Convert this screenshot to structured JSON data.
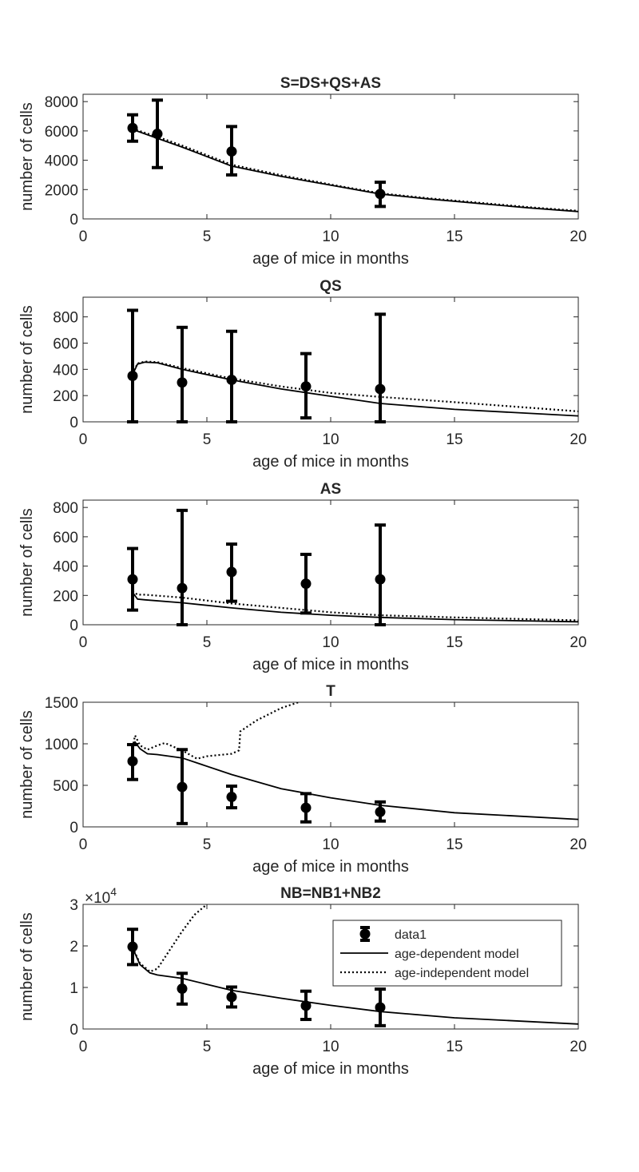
{
  "figure": {
    "xlabel": "age of mice in months",
    "ylabel": "number of cells"
  },
  "legend": {
    "entries": [
      "data1",
      "age-dependent model",
      "age-independent model"
    ]
  },
  "colors": {
    "ink": "#000000",
    "axis": "#262626",
    "background": "#ffffff"
  },
  "chart_data": [
    {
      "type": "line",
      "title": "S=DS+QS+AS",
      "xlabel": "age of mice in months",
      "ylabel": "number of cells",
      "xlim": [
        0,
        20
      ],
      "ylim": [
        0,
        8500
      ],
      "xticks": [
        0,
        5,
        10,
        15,
        20
      ],
      "yticks": [
        0,
        2000,
        4000,
        6000,
        8000
      ],
      "grid": false,
      "data": {
        "x": [
          2,
          3,
          6,
          12
        ],
        "y": [
          6200,
          5800,
          4600,
          1700
        ],
        "err_low": [
          5300,
          3500,
          3000,
          850
        ],
        "err_high": [
          7100,
          8100,
          6300,
          2500
        ]
      },
      "series": [
        {
          "name": "age-dependent model",
          "style": "solid",
          "x": [
            2,
            3,
            4,
            6,
            8,
            10,
            12,
            14,
            16,
            18,
            20
          ],
          "y": [
            6100,
            5500,
            4900,
            3600,
            2900,
            2300,
            1700,
            1350,
            1050,
            750,
            500
          ]
        },
        {
          "name": "age-independent model",
          "style": "dotted",
          "x": [
            2,
            3,
            4,
            6,
            8,
            10,
            12,
            14,
            16,
            18,
            20
          ],
          "y": [
            6150,
            5600,
            5000,
            3700,
            2980,
            2350,
            1750,
            1400,
            1100,
            800,
            550
          ]
        }
      ]
    },
    {
      "type": "line",
      "title": "QS",
      "xlabel": "age of mice in months",
      "ylabel": "number of cells",
      "xlim": [
        0,
        20
      ],
      "ylim": [
        0,
        950
      ],
      "xticks": [
        0,
        5,
        10,
        15,
        20
      ],
      "yticks": [
        0,
        200,
        400,
        600,
        800
      ],
      "grid": false,
      "data": {
        "x": [
          2,
          4,
          6,
          9,
          12
        ],
        "y": [
          350,
          300,
          320,
          270,
          250
        ],
        "err_low": [
          0,
          0,
          0,
          30,
          0
        ],
        "err_high": [
          850,
          720,
          690,
          520,
          820
        ]
      },
      "series": [
        {
          "name": "age-dependent model",
          "style": "solid",
          "x": [
            2,
            2.2,
            2.5,
            3,
            4,
            6,
            8,
            10,
            12,
            15,
            20
          ],
          "y": [
            360,
            440,
            455,
            450,
            400,
            320,
            250,
            195,
            140,
            95,
            45
          ]
        },
        {
          "name": "age-independent model",
          "style": "dotted",
          "x": [
            2,
            2.2,
            2.5,
            3,
            4,
            6,
            8,
            10,
            12,
            15,
            20
          ],
          "y": [
            365,
            445,
            460,
            455,
            410,
            330,
            270,
            220,
            190,
            150,
            80
          ]
        }
      ]
    },
    {
      "type": "line",
      "title": "AS",
      "xlabel": "age of mice in months",
      "ylabel": "number of cells",
      "xlim": [
        0,
        20
      ],
      "ylim": [
        0,
        850
      ],
      "xticks": [
        0,
        5,
        10,
        15,
        20
      ],
      "yticks": [
        0,
        200,
        400,
        600,
        800
      ],
      "grid": false,
      "data": {
        "x": [
          2,
          4,
          6,
          9,
          12
        ],
        "y": [
          310,
          250,
          360,
          280,
          310
        ],
        "err_low": [
          100,
          0,
          160,
          80,
          0
        ],
        "err_high": [
          520,
          780,
          550,
          480,
          680
        ]
      },
      "series": [
        {
          "name": "age-dependent model",
          "style": "solid",
          "x": [
            2,
            2.2,
            2.5,
            4,
            6,
            8,
            10,
            12,
            15,
            20
          ],
          "y": [
            220,
            175,
            170,
            150,
            115,
            85,
            65,
            50,
            35,
            20
          ]
        },
        {
          "name": "age-independent model",
          "style": "dotted",
          "x": [
            2,
            2.2,
            2.5,
            4,
            6,
            8,
            10,
            12,
            15,
            20
          ],
          "y": [
            230,
            205,
            205,
            185,
            145,
            115,
            85,
            65,
            50,
            30
          ]
        }
      ]
    },
    {
      "type": "line",
      "title": "T",
      "xlabel": "age of mice in months",
      "ylabel": "number of cells",
      "xlim": [
        0,
        20
      ],
      "ylim": [
        0,
        1500
      ],
      "xticks": [
        0,
        5,
        10,
        15,
        20
      ],
      "yticks": [
        0,
        500,
        1000,
        1500
      ],
      "grid": false,
      "data": {
        "x": [
          2,
          4,
          6,
          9,
          12
        ],
        "y": [
          790,
          480,
          360,
          230,
          180
        ],
        "err_low": [
          570,
          40,
          230,
          60,
          70
        ],
        "err_high": [
          990,
          930,
          490,
          400,
          300
        ]
      },
      "series": [
        {
          "name": "age-dependent model",
          "style": "solid",
          "x": [
            2,
            2.1,
            2.3,
            2.6,
            3,
            4,
            6,
            8,
            10,
            12,
            15,
            20
          ],
          "y": [
            950,
            1020,
            940,
            880,
            870,
            830,
            630,
            460,
            350,
            260,
            170,
            90
          ]
        },
        {
          "name": "age-independent model",
          "style": "dotted",
          "x": [
            2,
            2.1,
            2.3,
            2.6,
            3,
            3.3,
            4,
            4.6,
            5,
            6,
            6.3,
            6.35,
            7,
            8,
            8.7
          ],
          "y": [
            960,
            1100,
            980,
            930,
            980,
            1010,
            920,
            820,
            850,
            880,
            920,
            1150,
            1280,
            1430,
            1500
          ]
        }
      ]
    },
    {
      "type": "line",
      "title": "NB=NB1+NB2",
      "xlabel": "age of mice in months",
      "ylabel": "number of cells",
      "xlim": [
        0,
        20
      ],
      "ylim": [
        0,
        30000
      ],
      "xticks": [
        0,
        5,
        10,
        15,
        20
      ],
      "yticks": [
        0,
        10000,
        20000,
        30000
      ],
      "ytick_labels": [
        "0",
        "1",
        "2",
        "3"
      ],
      "y_exponent": "4",
      "grid": false,
      "legend_position": "top-right",
      "data": {
        "x": [
          2,
          4,
          6,
          9,
          12
        ],
        "y": [
          19800,
          9700,
          7700,
          5600,
          5200
        ],
        "err_low": [
          15500,
          6000,
          5300,
          2300,
          800
        ],
        "err_high": [
          24000,
          13400,
          10100,
          9100,
          9600
        ]
      },
      "series": [
        {
          "name": "age-dependent model",
          "style": "solid",
          "x": [
            2,
            2.3,
            2.7,
            3,
            4,
            6,
            8,
            10,
            12,
            15,
            20
          ],
          "y": [
            19500,
            15500,
            13500,
            13000,
            12200,
            9300,
            7400,
            5700,
            4200,
            2700,
            1200
          ]
        },
        {
          "name": "age-independent model",
          "style": "dotted",
          "x": [
            2,
            2.3,
            2.7,
            3,
            3.5,
            4,
            4.5,
            5
          ],
          "y": [
            19600,
            15800,
            13800,
            14500,
            19000,
            23500,
            27500,
            30000
          ]
        }
      ]
    }
  ]
}
